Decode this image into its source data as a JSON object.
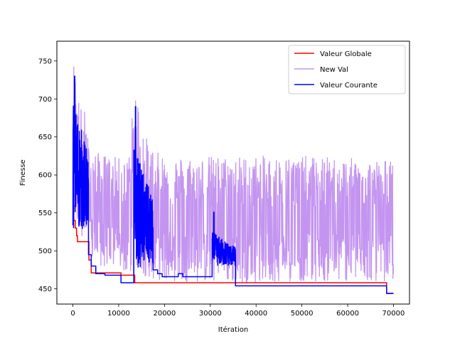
{
  "chart_data": {
    "type": "line",
    "xlabel": "Itération",
    "ylabel": "Finesse",
    "xlim": [
      -3500,
      73500
    ],
    "ylim": [
      430,
      776
    ],
    "xticks": [
      0,
      10000,
      20000,
      30000,
      40000,
      50000,
      60000,
      70000
    ],
    "yticks": [
      450,
      500,
      550,
      600,
      650,
      700,
      750
    ],
    "grid": false,
    "legend_position": "top-right",
    "series": [
      {
        "name": "Valeur Globale",
        "color": "#ff0000",
        "style": "step",
        "x": [
          0,
          200,
          500,
          800,
          1000,
          3500,
          4000,
          10500,
          13500,
          35500,
          68500,
          70000
        ],
        "y": [
          560,
          540,
          530,
          520,
          512,
          488,
          471,
          468,
          458,
          458,
          444,
          444
        ]
      },
      {
        "name": "New Val",
        "color": "#c495f0",
        "style": "noise-band",
        "x": [
          0,
          300,
          800,
          1500,
          2500,
          3500,
          5000,
          8000,
          12000,
          13200,
          13800,
          14500,
          16000,
          18000,
          22000,
          30000,
          40000,
          50000,
          60000,
          70000
        ],
        "upper": [
          762,
          745,
          730,
          690,
          688,
          640,
          630,
          625,
          620,
          695,
          720,
          690,
          650,
          630,
          625,
          625,
          625,
          625,
          622,
          620
        ],
        "lower": [
          570,
          545,
          530,
          528,
          510,
          490,
          480,
          478,
          470,
          465,
          470,
          470,
          466,
          462,
          460,
          458,
          458,
          460,
          460,
          460
        ]
      },
      {
        "name": "Valeur Courante",
        "color": "#0000ff",
        "style": "mixed",
        "segments": [
          {
            "kind": "noisy",
            "x0": 0,
            "x1": 3400,
            "lo": 528,
            "hi": 705,
            "peak": [
              400,
              730
            ]
          },
          {
            "kind": "step",
            "x": [
              3400,
              4000,
              5000,
              7000,
              10500,
              13300
            ],
            "y": [
              495,
              480,
              470,
              468,
              458,
              458
            ]
          },
          {
            "kind": "noisy",
            "x0": 13300,
            "x1": 17500,
            "lo": 478,
            "hi": 640,
            "peak": [
              13700,
              690
            ]
          },
          {
            "kind": "step",
            "x": [
              17500,
              18500,
              19500,
              23000,
              24000,
              30400
            ],
            "y": [
              475,
              470,
              466,
              470,
              466,
              466
            ]
          },
          {
            "kind": "noisy",
            "x0": 30400,
            "x1": 35500,
            "lo": 480,
            "hi": 525,
            "peak": [
              30800,
              551
            ]
          },
          {
            "kind": "step",
            "x": [
              35500,
              68500,
              70000
            ],
            "y": [
              454,
              444,
              444
            ]
          }
        ]
      }
    ]
  }
}
